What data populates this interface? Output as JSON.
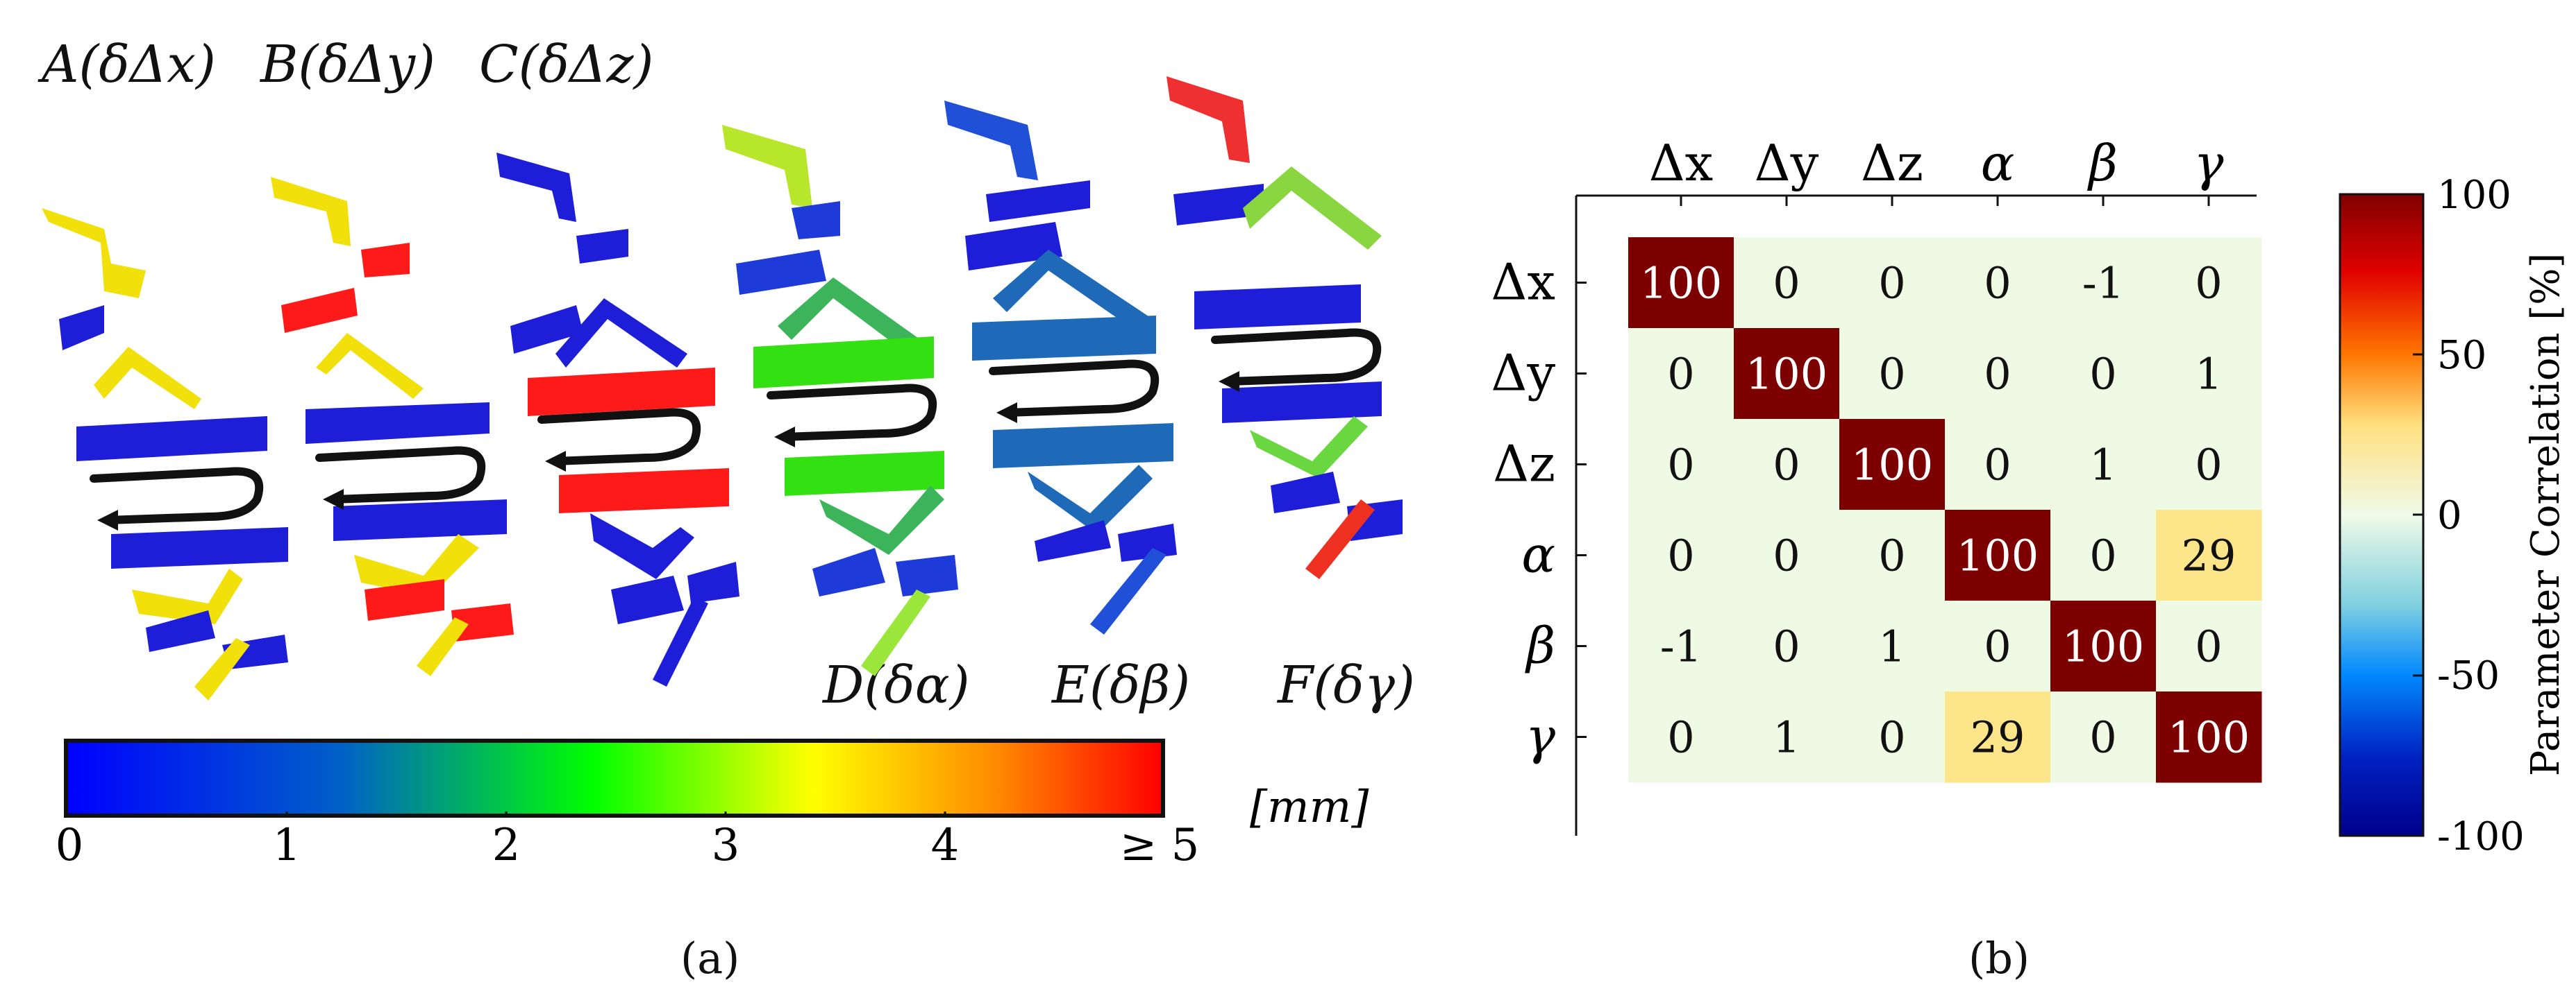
{
  "panel_a": {
    "caption": "(a)",
    "scan_labels_top": [
      "A(δΔx)",
      "B(δΔy)",
      "C(δΔz)"
    ],
    "scan_labels_bottom": [
      "D(δα)",
      "E(δβ)",
      "F(δγ)"
    ],
    "colorbar": {
      "ticks": [
        "0",
        "1",
        "2",
        "3",
        "4",
        "≥ 5"
      ],
      "unit": "[mm]",
      "colors": [
        "#0000ff",
        "#00ff00",
        "#ffff00",
        "#ff0000"
      ]
    }
  },
  "panel_b": {
    "caption": "(b)",
    "colorbar": {
      "label": "Parameter Correlation [%]",
      "ticks": [
        "100",
        "50",
        "0",
        "-50",
        "-100"
      ]
    }
  },
  "chart_data": {
    "type": "heatmap",
    "x_labels": [
      "Δx",
      "Δy",
      "Δz",
      "α",
      "β",
      "γ"
    ],
    "y_labels": [
      "Δx",
      "Δy",
      "Δz",
      "α",
      "β",
      "γ"
    ],
    "values": [
      [
        100,
        0,
        0,
        0,
        -1,
        0
      ],
      [
        0,
        100,
        0,
        0,
        0,
        1
      ],
      [
        0,
        0,
        100,
        0,
        1,
        0
      ],
      [
        0,
        0,
        0,
        100,
        0,
        29
      ],
      [
        -1,
        0,
        1,
        0,
        100,
        0
      ],
      [
        0,
        1,
        0,
        29,
        0,
        100
      ]
    ],
    "colorbar_label": "Parameter Correlation [%]",
    "zlim": [
      -100,
      100
    ]
  }
}
